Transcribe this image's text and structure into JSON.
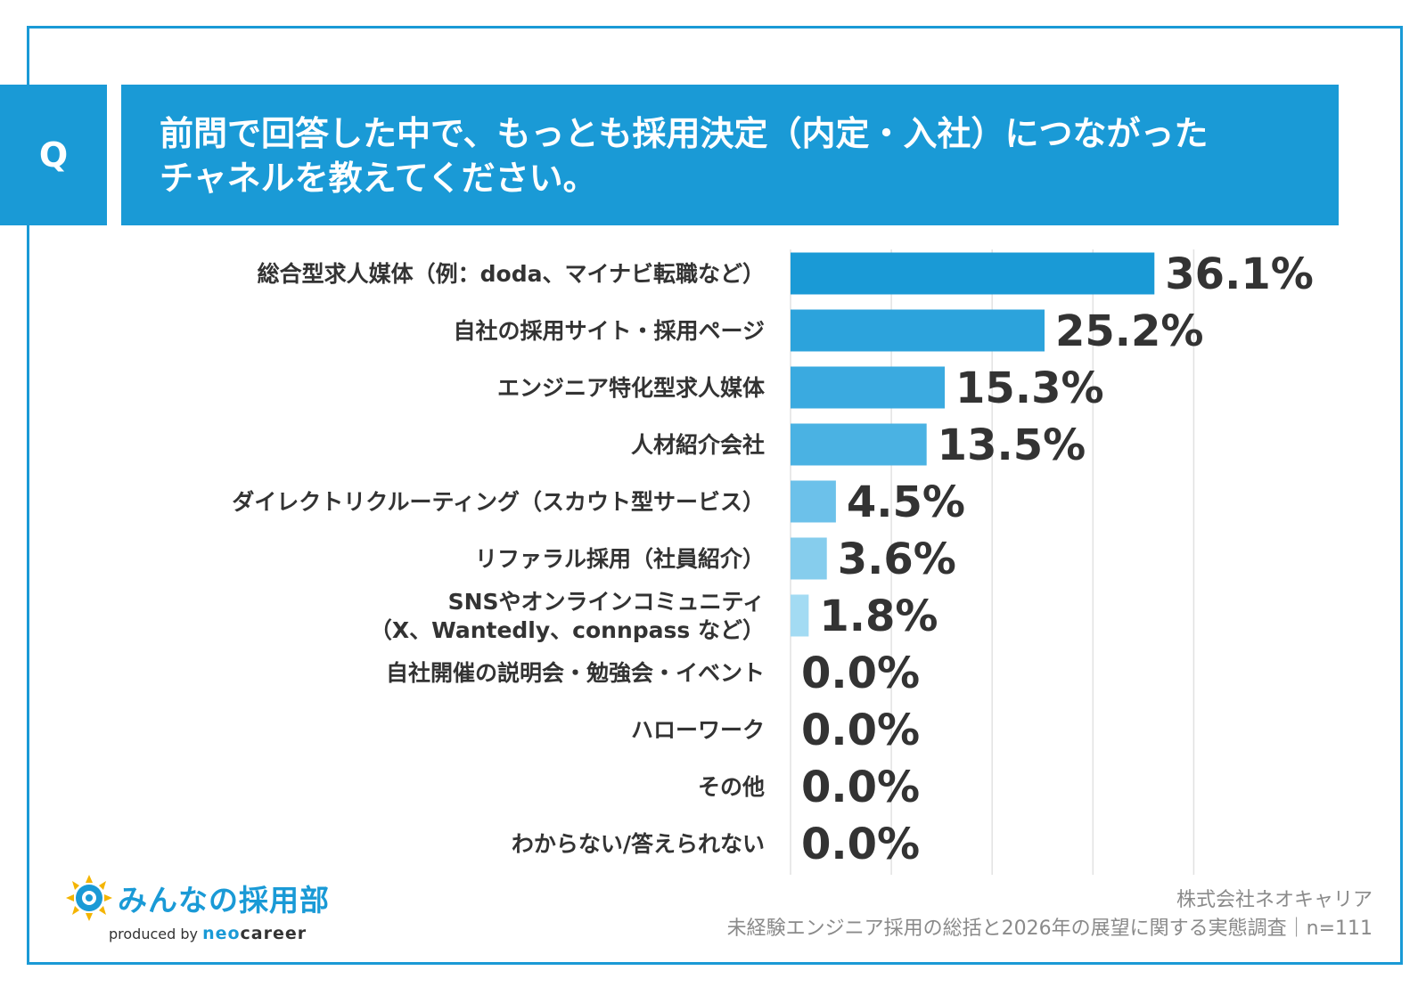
{
  "question": {
    "badge": "Q",
    "line1": "前問で回答した中で、もっとも採用決定（内定・入社）につながった",
    "line2": "チャネルを教えてください。"
  },
  "chart_data": {
    "type": "bar",
    "orientation": "horizontal",
    "title": "前問で回答した中で、もっとも採用決定（内定・入社）につながったチャネルを教えてください。",
    "xlabel": "",
    "ylabel": "",
    "xlim": [
      0,
      40
    ],
    "grid": true,
    "unit": "%",
    "categories": [
      [
        "総合型求人媒体（例：doda、マイナビ転職など）"
      ],
      [
        "自社の採用サイト・採用ページ"
      ],
      [
        "エンジニア特化型求人媒体"
      ],
      [
        "人材紹介会社"
      ],
      [
        "ダイレクトリクルーティング（スカウト型サービス）"
      ],
      [
        "リファラル採用（社員紹介）"
      ],
      [
        "SNSやオンラインコミュニティ",
        "（X、Wantedly、connpass など）"
      ],
      [
        "自社開催の説明会・勉強会・イベント"
      ],
      [
        "ハローワーク"
      ],
      [
        "その他"
      ],
      [
        "わからない/答えられない"
      ]
    ],
    "values": [
      36.1,
      25.2,
      15.3,
      13.5,
      4.5,
      3.6,
      1.8,
      0.0,
      0.0,
      0.0,
      0.0
    ],
    "value_labels": [
      "36.1%",
      "25.2%",
      "15.3%",
      "13.5%",
      "4.5%",
      "3.6%",
      "1.8%",
      "0.0%",
      "0.0%",
      "0.0%",
      "0.0%"
    ],
    "bar_colors": [
      "#1a9ad6",
      "#2ca3dc",
      "#3aaae0",
      "#4ab2e3",
      "#6cc1ea",
      "#86cded",
      "#a3dbf3",
      "#b9e3f6",
      "#b9e3f6",
      "#b9e3f6",
      "#b9e3f6"
    ],
    "grid_color": "#e2e2e2"
  },
  "logo": {
    "name": "みんなの採用部",
    "produced_by": "produced by",
    "brand_prefix": "neo",
    "brand_suffix": "career"
  },
  "source": {
    "company": "株式会社ネオキャリア",
    "survey": "未経験エンジニア採用の総括と2026年の展望に関する実態調査｜n=111"
  },
  "colors": {
    "accent": "#1a9ad6",
    "text": "#333333",
    "muted": "#8a8a8a"
  }
}
